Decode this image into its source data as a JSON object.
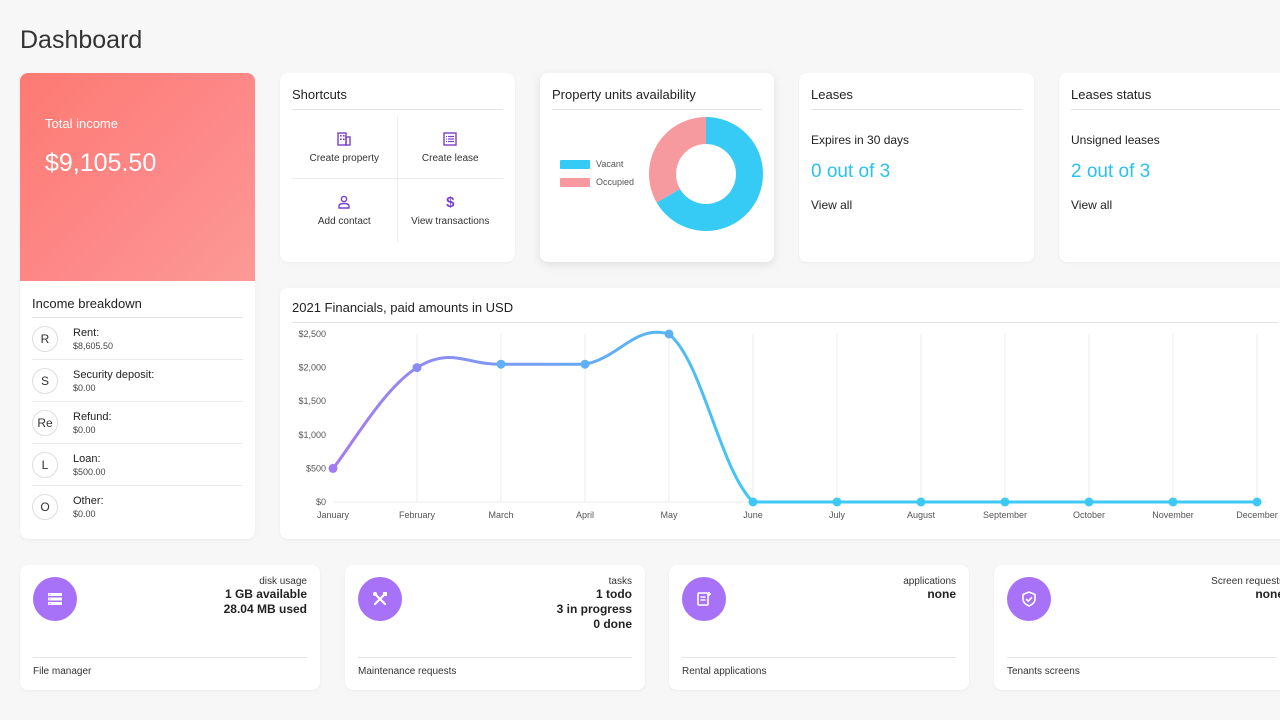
{
  "page_title": "Dashboard",
  "income": {
    "label": "Total income",
    "value": "$9,105.50",
    "breakdown_title": "Income breakdown",
    "items": [
      {
        "initial": "R",
        "name": "Rent:",
        "amount": "$8,605.50"
      },
      {
        "initial": "S",
        "name": "Security deposit:",
        "amount": "$0.00"
      },
      {
        "initial": "Re",
        "name": "Refund:",
        "amount": "$0.00"
      },
      {
        "initial": "L",
        "name": "Loan:",
        "amount": "$500.00"
      },
      {
        "initial": "O",
        "name": "Other:",
        "amount": "$0.00"
      }
    ]
  },
  "shortcuts": {
    "title": "Shortcuts",
    "items": [
      {
        "label": "Create property",
        "icon": "building-icon"
      },
      {
        "label": "Create lease",
        "icon": "document-list-icon"
      },
      {
        "label": "Add contact",
        "icon": "person-icon"
      },
      {
        "label": "View transactions",
        "icon": "dollar-icon"
      }
    ]
  },
  "availability": {
    "title": "Property units availability",
    "legend": [
      {
        "label": "Vacant",
        "color": "#36cbf4"
      },
      {
        "label": "Occupied",
        "color": "#f79aa0"
      }
    ],
    "vacant": 2,
    "occupied": 1
  },
  "leases": {
    "title": "Leases",
    "subtitle": "Expires in 30 days",
    "count": "0 out of 3",
    "link": "View all"
  },
  "leases_status": {
    "title": "Leases status",
    "subtitle": "Unsigned leases",
    "count": "2 out of 3",
    "link": "View all"
  },
  "financials": {
    "title": "2021 Financials, paid amounts in USD"
  },
  "chart_data": {
    "type": "line",
    "title": "2021 Financials, paid amounts in USD",
    "categories": [
      "January",
      "February",
      "March",
      "April",
      "May",
      "June",
      "July",
      "August",
      "September",
      "October",
      "November",
      "December"
    ],
    "series": [
      {
        "values": [
          500,
          2000,
          2050,
          2050,
          2500,
          0,
          0,
          0,
          0,
          0,
          0,
          0
        ]
      }
    ],
    "ylim": [
      0,
      2500
    ],
    "yticks": [
      "$0",
      "$500",
      "$1,000",
      "$1,500",
      "$2,000",
      "$2,500"
    ],
    "grid": "vertical",
    "colors": {
      "start": "#a57bf0",
      "end": "#3ec8f5"
    }
  },
  "stats": [
    {
      "label": "disk usage",
      "lines": [
        "1 GB available",
        "28.04 MB used"
      ],
      "bold": true,
      "footer": "File manager",
      "icon": "storage-list-icon"
    },
    {
      "label": "tasks",
      "lines": [
        "1 todo",
        "3 in progress",
        "0 done"
      ],
      "bold": true,
      "footer": "Maintenance requests",
      "icon": "tools-icon"
    },
    {
      "label": "applications",
      "lines": [
        "none"
      ],
      "bold": true,
      "footer": "Rental applications",
      "icon": "application-form-icon"
    },
    {
      "label": "Screen requests",
      "lines": [
        "none"
      ],
      "bold": true,
      "footer": "Tenants screens",
      "icon": "shield-check-icon"
    }
  ]
}
